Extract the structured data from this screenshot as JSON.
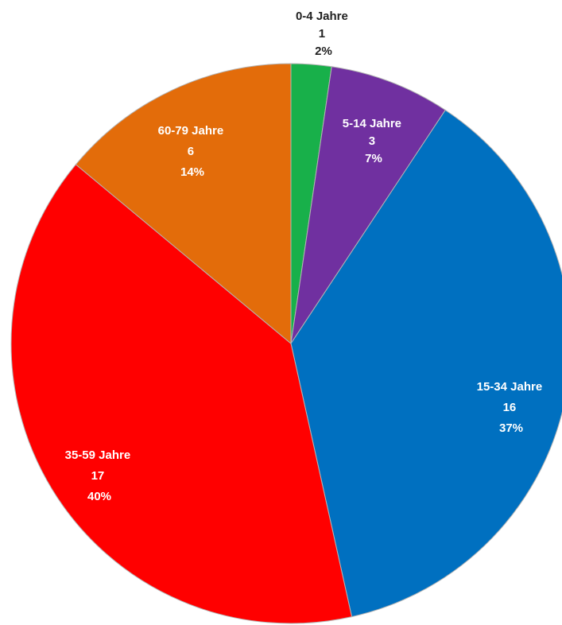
{
  "chart_data": {
    "type": "pie",
    "title": "",
    "legend": "none",
    "slices": [
      {
        "label": "0-4 Jahre",
        "value": 1,
        "percent": "2%",
        "color": "#18b04a",
        "label_color": "#222222",
        "label_position": "outside"
      },
      {
        "label": "5-14 Jahre",
        "value": 3,
        "percent": "7%",
        "color": "#7030a0",
        "label_color": "#ffffff",
        "label_position": "inside"
      },
      {
        "label": "15-34 Jahre",
        "value": 16,
        "percent": "37%",
        "color": "#0070c0",
        "label_color": "#ffffff",
        "label_position": "inside"
      },
      {
        "label": "35-59 Jahre",
        "value": 17,
        "percent": "40%",
        "color": "#ff0000",
        "label_color": "#ffffff",
        "label_position": "inside"
      },
      {
        "label": "60-79 Jahre",
        "value": 6,
        "percent": "14%",
        "color": "#e36c0a",
        "label_color": "#ffffff",
        "label_position": "inside"
      }
    ]
  }
}
